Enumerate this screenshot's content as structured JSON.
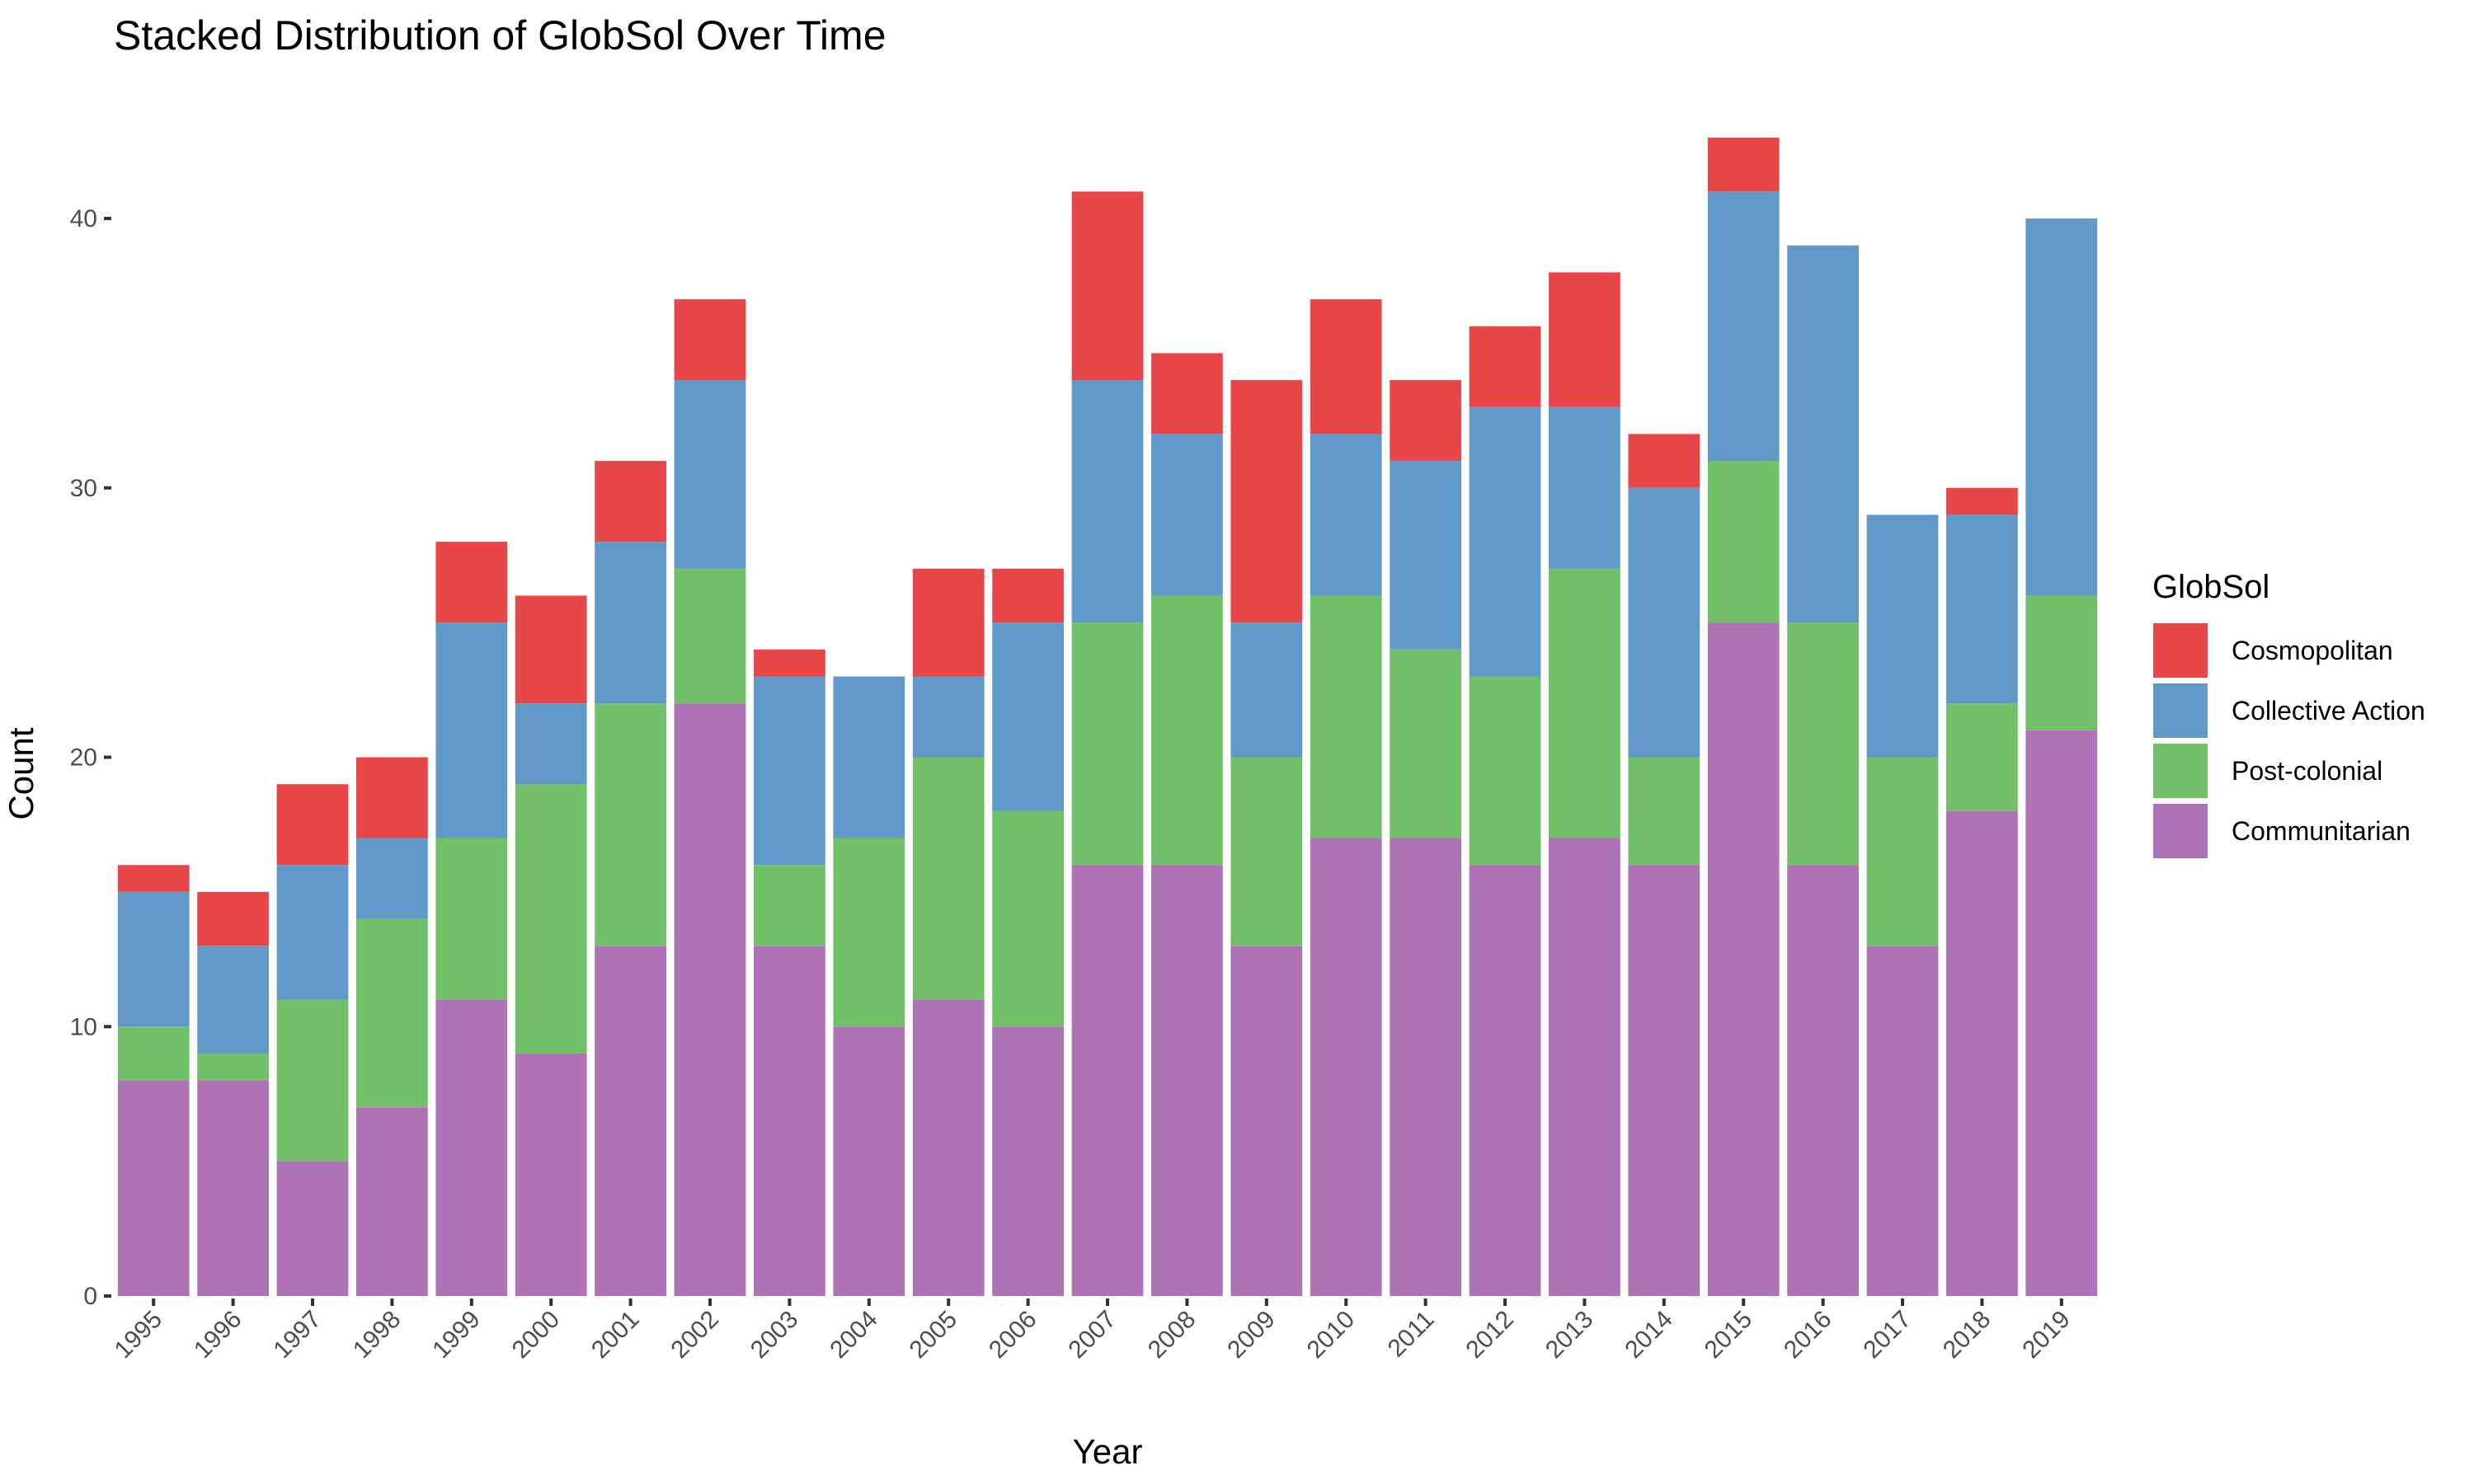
{
  "chart_data": {
    "type": "bar",
    "stacked": true,
    "title": "Stacked Distribution of GlobSol Over Time",
    "xlabel": "Year",
    "ylabel": "Count",
    "ylim": [
      0,
      44
    ],
    "yticks": [
      0,
      10,
      20,
      30,
      40
    ],
    "grid": false,
    "legend": {
      "title": "GlobSol",
      "position": "right"
    },
    "categories": [
      "1995",
      "1996",
      "1997",
      "1998",
      "1999",
      "2000",
      "2001",
      "2002",
      "2003",
      "2004",
      "2005",
      "2006",
      "2007",
      "2008",
      "2009",
      "2010",
      "2011",
      "2012",
      "2013",
      "2014",
      "2015",
      "2016",
      "2017",
      "2018",
      "2019"
    ],
    "series": [
      {
        "name": "Communitarian",
        "color": "#AD73B5",
        "values": [
          8,
          8,
          5,
          7,
          11,
          9,
          13,
          22,
          13,
          10,
          11,
          10,
          16,
          16,
          13,
          17,
          17,
          16,
          17,
          16,
          25,
          16,
          13,
          18,
          21
        ]
      },
      {
        "name": "Post-colonial",
        "color": "#72BF6A",
        "values": [
          2,
          1,
          6,
          7,
          6,
          10,
          9,
          5,
          3,
          7,
          9,
          8,
          9,
          10,
          7,
          9,
          7,
          7,
          10,
          4,
          6,
          9,
          7,
          4,
          5
        ]
      },
      {
        "name": "Collective Action",
        "color": "#6199C8",
        "values": [
          5,
          4,
          5,
          3,
          8,
          3,
          6,
          7,
          7,
          6,
          3,
          7,
          9,
          6,
          5,
          6,
          7,
          10,
          6,
          10,
          10,
          14,
          9,
          7,
          14
        ]
      },
      {
        "name": "Cosmopolitan",
        "color": "#E8474A",
        "values": [
          1,
          2,
          3,
          3,
          3,
          4,
          3,
          3,
          1,
          0,
          4,
          2,
          7,
          3,
          9,
          5,
          3,
          3,
          5,
          2,
          2,
          0,
          0,
          1,
          0
        ]
      }
    ]
  }
}
